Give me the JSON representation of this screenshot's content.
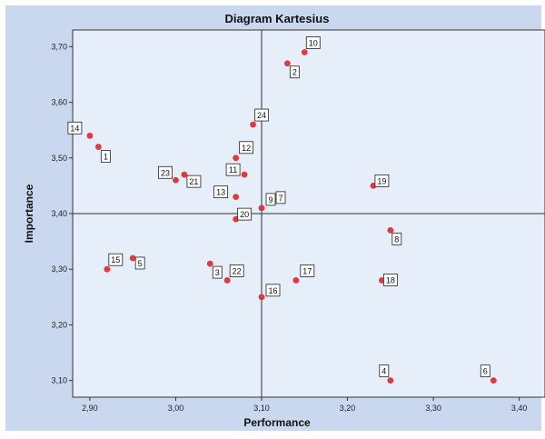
{
  "colors": {
    "outer_bg": "#c9d8ee",
    "plot_bg": "#e6eefa",
    "point": "#e0393e",
    "axis": "#333333"
  },
  "chart_data": {
    "type": "scatter",
    "title": "Diagram Kartesius",
    "xlabel": "Performance",
    "ylabel": "Importance",
    "xlim": [
      2.88,
      3.43
    ],
    "ylim": [
      3.07,
      3.73
    ],
    "xticks": [
      2.9,
      3.0,
      3.1,
      3.2,
      3.3,
      3.4
    ],
    "xtick_labels": [
      "2,90",
      "3,00",
      "3,10",
      "3,20",
      "3,30",
      "3,40"
    ],
    "yticks": [
      3.1,
      3.2,
      3.3,
      3.4,
      3.5,
      3.6,
      3.7
    ],
    "ytick_labels": [
      "3,10",
      "3,20",
      "3,30",
      "3,40",
      "3,50",
      "3,60",
      "3,70"
    ],
    "reference_lines": {
      "x": 3.1,
      "y": 3.4
    },
    "grid": false,
    "legend": "none",
    "points": [
      {
        "label": "1",
        "x": 2.91,
        "y": 3.52
      },
      {
        "label": "2",
        "x": 3.13,
        "y": 3.67
      },
      {
        "label": "3",
        "x": 3.04,
        "y": 3.31
      },
      {
        "label": "4",
        "x": 3.25,
        "y": 3.1
      },
      {
        "label": "5",
        "x": 2.95,
        "y": 3.32
      },
      {
        "label": "6",
        "x": 3.37,
        "y": 3.1
      },
      {
        "label": "7",
        "x": 3.1,
        "y": 3.41
      },
      {
        "label": "8",
        "x": 3.25,
        "y": 3.37
      },
      {
        "label": "9",
        "x": 3.1,
        "y": 3.41
      },
      {
        "label": "11",
        "x": 3.08,
        "y": 3.47
      },
      {
        "label": "12",
        "x": 3.07,
        "y": 3.5
      },
      {
        "label": "13",
        "x": 3.07,
        "y": 3.43
      },
      {
        "label": "14",
        "x": 2.9,
        "y": 3.54
      },
      {
        "label": "15",
        "x": 2.92,
        "y": 3.3
      },
      {
        "label": "16",
        "x": 3.1,
        "y": 3.25
      },
      {
        "label": "17",
        "x": 3.14,
        "y": 3.28
      },
      {
        "label": "18",
        "x": 3.24,
        "y": 3.28
      },
      {
        "label": "19",
        "x": 3.23,
        "y": 3.45
      },
      {
        "label": "20",
        "x": 3.07,
        "y": 3.39
      },
      {
        "label": "21",
        "x": 3.01,
        "y": 3.47
      },
      {
        "label": "22",
        "x": 3.06,
        "y": 3.28
      },
      {
        "label": "23",
        "x": 3.0,
        "y": 3.46
      },
      {
        "label": "24",
        "x": 3.09,
        "y": 3.56
      },
      {
        "label": "10",
        "x": 3.15,
        "y": 3.69
      }
    ]
  }
}
